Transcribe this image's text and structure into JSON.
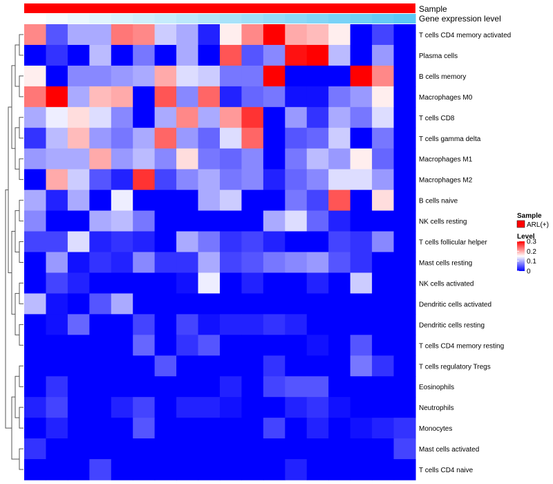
{
  "chart_data": {
    "type": "heatmap",
    "title": "",
    "annotation_tracks": [
      {
        "name": "Sample",
        "color": "#ff0000"
      },
      {
        "name": "Gene expression level",
        "low_color": "#ffffff",
        "high_color": "#5bc8f5",
        "values": [
          0.0,
          0.06,
          0.12,
          0.18,
          0.24,
          0.29,
          0.35,
          0.41,
          0.47,
          0.53,
          0.59,
          0.65,
          0.71,
          0.76,
          0.82,
          0.88,
          0.94,
          1.0
        ]
      }
    ],
    "rows": [
      "T cells CD4 memory activated",
      "Plasma cells",
      "B cells memory",
      "Macrophages M0",
      "T cells CD8",
      "T cells gamma delta",
      "Macrophages M1",
      "Macrophages M2",
      "B cells naive",
      "NK cells resting",
      "T cells follicular helper",
      "Mast cells resting",
      "NK cells activated",
      "Dendritic cells activated",
      "Dendritic cells resting",
      "T cells CD4 memory resting",
      "T cells regulatory  Tregs",
      "Eosinophils",
      "Neutrophils",
      "Monocytes",
      "Mast cells activated",
      "T cells CD4 naive"
    ],
    "n_columns": 18,
    "values": [
      [
        0.22,
        0.05,
        0.1,
        0.1,
        0.23,
        0.22,
        0.12,
        0.1,
        0.02,
        0.16,
        0.22,
        0.3,
        0.2,
        0.19,
        0.16,
        0.0,
        0.04,
        0.0
      ],
      [
        0.0,
        0.03,
        0.0,
        0.11,
        0.0,
        0.07,
        0.0,
        0.1,
        0.0,
        0.25,
        0.05,
        0.08,
        0.29,
        0.3,
        0.11,
        0.0,
        0.09,
        0.0
      ],
      [
        0.16,
        0.0,
        0.08,
        0.08,
        0.09,
        0.1,
        0.2,
        0.13,
        0.12,
        0.07,
        0.07,
        0.3,
        0.0,
        0.0,
        0.0,
        0.3,
        0.22,
        0.0
      ],
      [
        0.23,
        0.3,
        0.1,
        0.19,
        0.2,
        0.0,
        0.25,
        0.08,
        0.24,
        0.02,
        0.06,
        0.07,
        0.01,
        0.01,
        0.07,
        0.09,
        0.16,
        0.0
      ],
      [
        0.1,
        0.14,
        0.17,
        0.13,
        0.08,
        0.0,
        0.1,
        0.22,
        0.1,
        0.21,
        0.27,
        0.0,
        0.09,
        0.03,
        0.1,
        0.07,
        0.13,
        0.0
      ],
      [
        0.03,
        0.11,
        0.19,
        0.09,
        0.07,
        0.1,
        0.24,
        0.09,
        0.06,
        0.13,
        0.24,
        0.0,
        0.05,
        0.06,
        0.12,
        0.0,
        0.07,
        0.0
      ],
      [
        0.09,
        0.1,
        0.1,
        0.2,
        0.09,
        0.11,
        0.08,
        0.17,
        0.07,
        0.06,
        0.08,
        0.0,
        0.07,
        0.11,
        0.09,
        0.16,
        0.06,
        0.0
      ],
      [
        0.0,
        0.2,
        0.12,
        0.05,
        0.02,
        0.27,
        0.04,
        0.08,
        0.1,
        0.07,
        0.08,
        0.02,
        0.06,
        0.08,
        0.13,
        0.13,
        0.09,
        0.0
      ],
      [
        0.1,
        0.02,
        0.1,
        0.0,
        0.14,
        0.0,
        0.0,
        0.0,
        0.1,
        0.12,
        0.0,
        0.0,
        0.07,
        0.04,
        0.25,
        0.0,
        0.17,
        0.0
      ],
      [
        0.08,
        0.0,
        0.0,
        0.1,
        0.11,
        0.07,
        0.0,
        0.0,
        0.0,
        0.0,
        0.0,
        0.1,
        0.13,
        0.06,
        0.02,
        0.0,
        0.0,
        0.0
      ],
      [
        0.04,
        0.04,
        0.13,
        0.02,
        0.03,
        0.02,
        0.0,
        0.1,
        0.07,
        0.03,
        0.04,
        0.02,
        0.0,
        0.0,
        0.04,
        0.03,
        0.08,
        0.0
      ],
      [
        0.0,
        0.09,
        0.01,
        0.03,
        0.02,
        0.08,
        0.03,
        0.03,
        0.1,
        0.04,
        0.05,
        0.07,
        0.08,
        0.09,
        0.05,
        0.03,
        0.0,
        0.0
      ],
      [
        0.0,
        0.04,
        0.02,
        0.0,
        0.0,
        0.0,
        0.0,
        0.01,
        0.14,
        0.0,
        0.02,
        0.0,
        0.0,
        0.02,
        0.0,
        0.12,
        0.0,
        0.0
      ],
      [
        0.11,
        0.01,
        0.0,
        0.05,
        0.1,
        0.0,
        0.0,
        0.0,
        0.0,
        0.0,
        0.0,
        0.0,
        0.0,
        0.0,
        0.0,
        0.0,
        0.0,
        0.0
      ],
      [
        0.0,
        0.01,
        0.06,
        0.0,
        0.0,
        0.04,
        0.0,
        0.04,
        0.01,
        0.02,
        0.02,
        0.03,
        0.02,
        0.0,
        0.0,
        0.0,
        0.0,
        0.0
      ],
      [
        0.0,
        0.0,
        0.0,
        0.0,
        0.0,
        0.06,
        0.0,
        0.03,
        0.05,
        0.0,
        0.0,
        0.0,
        0.0,
        0.01,
        0.0,
        0.05,
        0.0,
        0.0
      ],
      [
        0.0,
        0.0,
        0.0,
        0.0,
        0.0,
        0.0,
        0.05,
        0.0,
        0.0,
        0.0,
        0.0,
        0.03,
        0.0,
        0.0,
        0.0,
        0.07,
        0.03,
        0.0
      ],
      [
        0.0,
        0.03,
        0.0,
        0.0,
        0.0,
        0.0,
        0.0,
        0.0,
        0.0,
        0.02,
        0.0,
        0.04,
        0.05,
        0.05,
        0.0,
        0.0,
        0.0,
        0.0
      ],
      [
        0.02,
        0.04,
        0.0,
        0.0,
        0.02,
        0.04,
        0.0,
        0.02,
        0.02,
        0.01,
        0.0,
        0.0,
        0.02,
        0.03,
        0.01,
        0.0,
        0.0,
        0.0
      ],
      [
        0.0,
        0.02,
        0.0,
        0.0,
        0.0,
        0.05,
        0.0,
        0.0,
        0.0,
        0.0,
        0.0,
        0.04,
        0.0,
        0.02,
        0.0,
        0.01,
        0.02,
        0.03
      ],
      [
        0.03,
        0.0,
        0.0,
        0.0,
        0.0,
        0.0,
        0.0,
        0.0,
        0.0,
        0.0,
        0.0,
        0.0,
        0.0,
        0.0,
        0.0,
        0.0,
        0.0,
        0.04
      ],
      [
        0.0,
        0.0,
        0.0,
        0.04,
        0.0,
        0.0,
        0.0,
        0.0,
        0.0,
        0.0,
        0.0,
        0.0,
        0.02,
        0.0,
        0.0,
        0.0,
        0.0,
        0.0
      ]
    ],
    "color_scale": {
      "low": "#0000ff",
      "mid": "#ffffff",
      "high": "#ff0000",
      "min": 0,
      "mid_value": 0.15,
      "max": 0.3
    },
    "legend": {
      "sample_title": "Sample",
      "sample_entry": "ARL(+)",
      "sample_color": "#ff0000",
      "level_title": "Level",
      "level_ticks": [
        {
          "label": "0.3",
          "value": 0.3
        },
        {
          "label": "0.2",
          "value": 0.2
        },
        {
          "label": "0.1",
          "value": 0.1
        },
        {
          "label": "0",
          "value": 0
        }
      ],
      "position": "right"
    },
    "row_dendrogram": true
  }
}
